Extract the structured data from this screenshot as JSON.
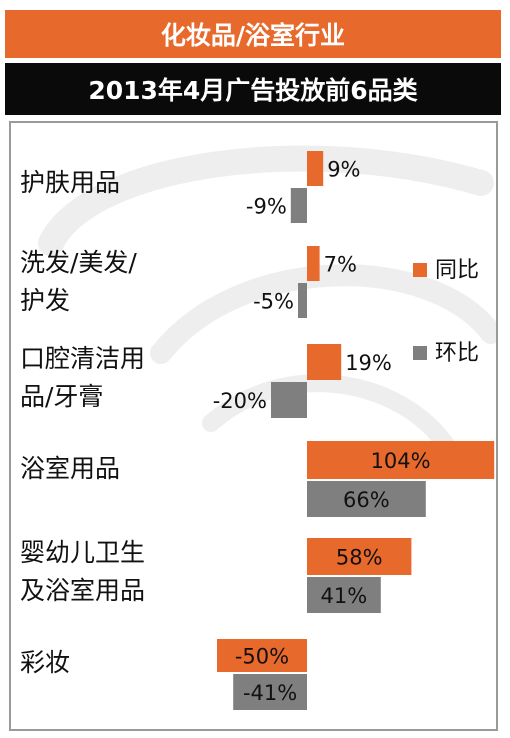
{
  "header": {
    "industry": "化妆品/浴室行业",
    "title": "2013年4月广告投放前6品类"
  },
  "colors": {
    "yoy": "#E8692C",
    "mom": "#7F7F7F"
  },
  "chart_data": {
    "type": "bar",
    "orientation": "horizontal",
    "categories": [
      [
        "护肤用品"
      ],
      [
        "洗发/美发/",
        "护发"
      ],
      [
        "口腔清洁用",
        "品/牙膏"
      ],
      [
        "浴室用品"
      ],
      [
        "婴幼儿卫生",
        "及浴室用品"
      ],
      [
        "彩妆"
      ]
    ],
    "series": [
      {
        "name": "同比",
        "values": [
          9,
          7,
          19,
          104,
          58,
          -50
        ],
        "labels": [
          "9%",
          "7%",
          "19%",
          "104%",
          "58%",
          "-50%"
        ]
      },
      {
        "name": "环比",
        "values": [
          -9,
          -5,
          -20,
          66,
          41,
          -41
        ],
        "labels": [
          "-9%",
          "-5%",
          "-20%",
          "66%",
          "41%",
          "-41%"
        ]
      }
    ],
    "unit": "%",
    "legend": "right",
    "grid": false
  }
}
